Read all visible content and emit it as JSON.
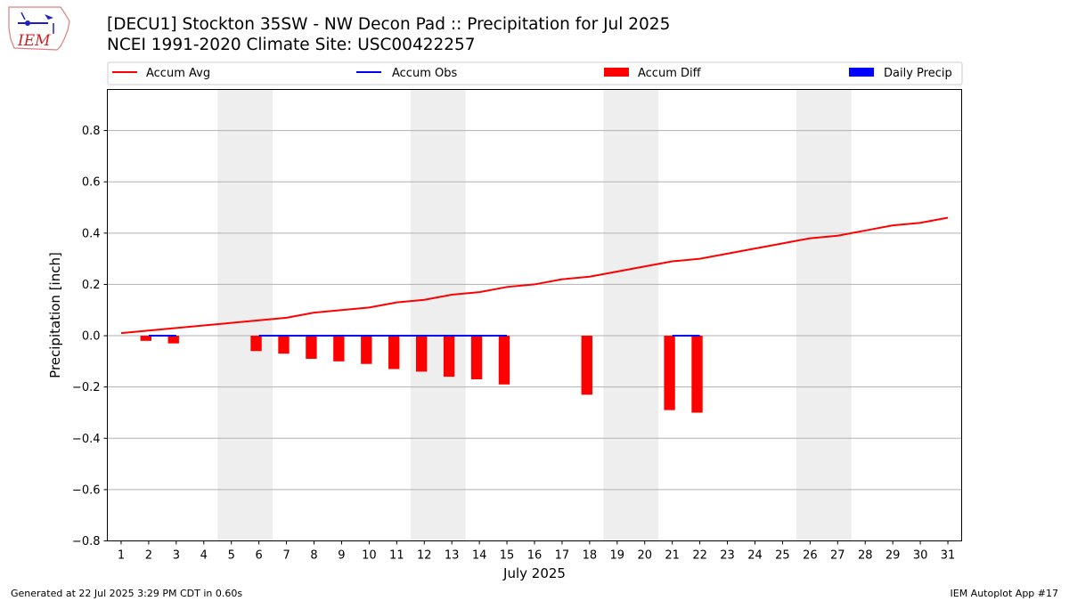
{
  "titles": {
    "line1": "[DECU1] Stockton 35SW - NW Decon Pad :: Precipitation for Jul 2025",
    "line2": "NCEI 1991-2020 Climate Site: USC00422257"
  },
  "logo": {
    "text": "IEM",
    "icon": "iem-iowa-logo-icon"
  },
  "footer": {
    "generated": "Generated at 22 Jul 2025 3:29 PM CDT in 0.60s",
    "app": "IEM Autoplot App #17"
  },
  "colors": {
    "avg": "#ff0000",
    "obs": "#0000ff",
    "diff": "#ff0000",
    "daily": "#0000ff",
    "weekend": "#eeeeee"
  },
  "chart_data": {
    "type": "bar",
    "xlabel": "July 2025",
    "ylabel": "Precipitation [inch]",
    "ylim": [
      -0.8,
      0.96
    ],
    "yticks": [
      -0.8,
      -0.6,
      -0.4,
      -0.2,
      0.0,
      0.2,
      0.4,
      0.6,
      0.8
    ],
    "ytick_labels": [
      "−0.8",
      "−0.6",
      "−0.4",
      "−0.2",
      "0.0",
      "0.2",
      "0.4",
      "0.6",
      "0.8"
    ],
    "xlim": [
      0.5,
      31.5
    ],
    "x": [
      1,
      2,
      3,
      4,
      5,
      6,
      7,
      8,
      9,
      10,
      11,
      12,
      13,
      14,
      15,
      16,
      17,
      18,
      19,
      20,
      21,
      22,
      23,
      24,
      25,
      26,
      27,
      28,
      29,
      30,
      31
    ],
    "x_tick_labels": [
      "1",
      "2",
      "3",
      "4",
      "5",
      "6",
      "7",
      "8",
      "9",
      "10",
      "11",
      "12",
      "13",
      "14",
      "15",
      "16",
      "17",
      "18",
      "19",
      "20",
      "21",
      "22",
      "23",
      "24",
      "25",
      "26",
      "27",
      "28",
      "29",
      "30",
      "31"
    ],
    "grid": "y",
    "legend_placement": "top",
    "legend": [
      "Accum Avg",
      "Accum Obs",
      "Accum Diff",
      "Daily Precip"
    ],
    "weekend_spans": [
      [
        4.5,
        6.5
      ],
      [
        11.5,
        13.5
      ],
      [
        18.5,
        20.5
      ],
      [
        25.5,
        27.5
      ]
    ],
    "accum_avg": [
      0.01,
      0.02,
      0.03,
      0.04,
      0.05,
      0.06,
      0.07,
      0.09,
      0.1,
      0.11,
      0.13,
      0.14,
      0.16,
      0.17,
      0.19,
      0.2,
      0.22,
      0.23,
      0.25,
      0.27,
      0.29,
      0.3,
      0.32,
      0.34,
      0.36,
      0.38,
      0.39,
      0.41,
      0.43,
      0.44,
      0.46
    ],
    "accum_obs": {
      "segments": [
        {
          "x": [
            2,
            3
          ],
          "values": [
            0,
            0
          ]
        },
        {
          "x": [
            6,
            7,
            8,
            9,
            10,
            11,
            12,
            13,
            14,
            15
          ],
          "values": [
            0,
            0,
            0,
            0,
            0,
            0,
            0,
            0,
            0,
            0
          ]
        },
        {
          "x": [
            21,
            22
          ],
          "values": [
            0,
            0
          ]
        }
      ]
    },
    "accum_diff": [
      {
        "x": 2,
        "value": -0.02
      },
      {
        "x": 3,
        "value": -0.03
      },
      {
        "x": 6,
        "value": -0.06
      },
      {
        "x": 7,
        "value": -0.07
      },
      {
        "x": 8,
        "value": -0.09
      },
      {
        "x": 9,
        "value": -0.1
      },
      {
        "x": 10,
        "value": -0.11
      },
      {
        "x": 11,
        "value": -0.13
      },
      {
        "x": 12,
        "value": -0.14
      },
      {
        "x": 13,
        "value": -0.16
      },
      {
        "x": 14,
        "value": -0.17
      },
      {
        "x": 15,
        "value": -0.19
      },
      {
        "x": 18,
        "value": -0.23
      },
      {
        "x": 21,
        "value": -0.29
      },
      {
        "x": 22,
        "value": -0.3
      }
    ],
    "daily_precip": []
  }
}
